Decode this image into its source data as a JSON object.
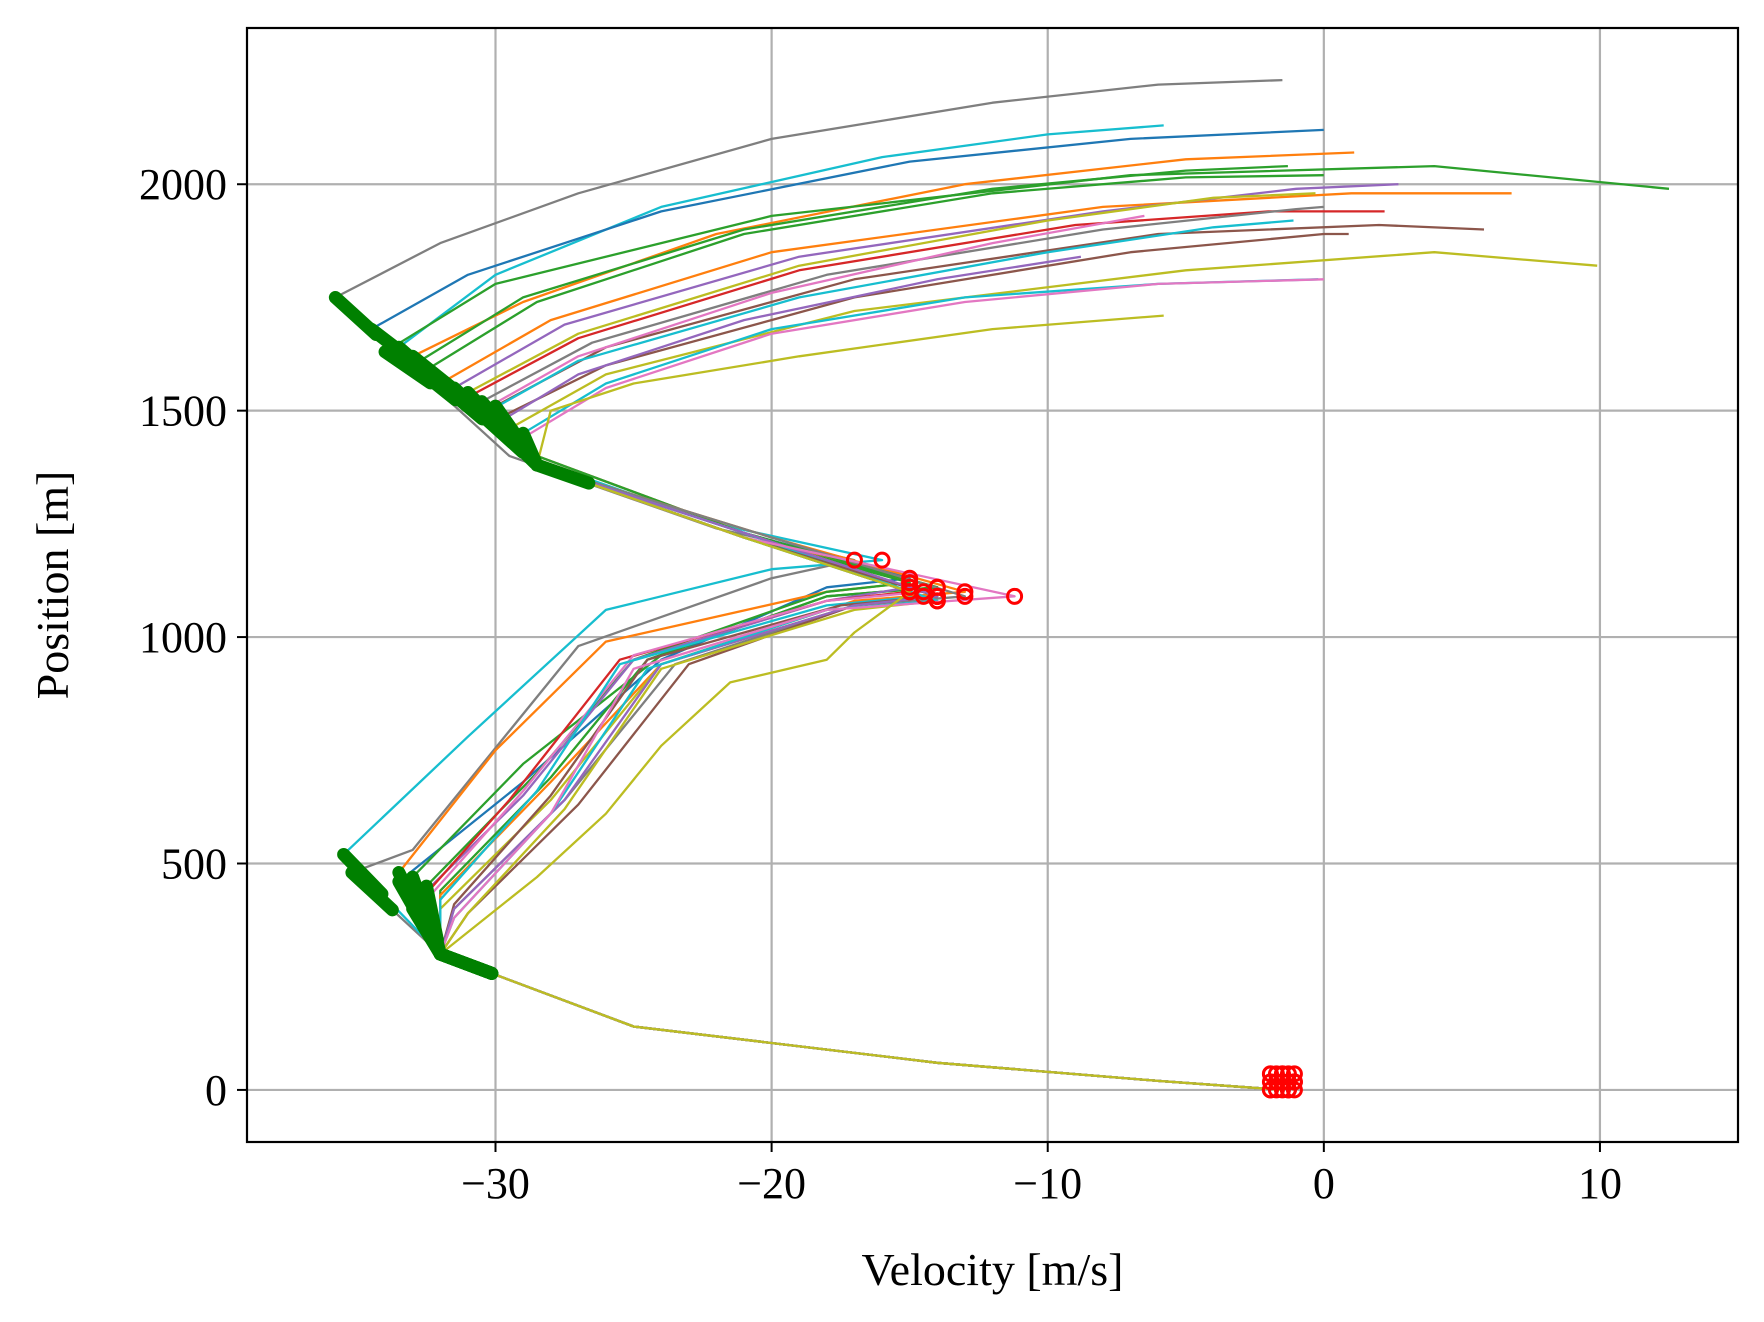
{
  "chart_data": {
    "type": "line",
    "title": "",
    "xlabel": "Velocity [m/s]",
    "ylabel": "Position [m]",
    "xlim": [
      -39,
      15
    ],
    "ylim": [
      -115,
      2345
    ],
    "xticks": [
      -30,
      -20,
      -10,
      0,
      10
    ],
    "xtick_labels": [
      "−30",
      "−20",
      "−10",
      "0",
      "10"
    ],
    "yticks": [
      0,
      500,
      1000,
      1500,
      2000
    ],
    "ytick_labels": [
      "0",
      "500",
      "1000",
      "1500",
      "2000"
    ],
    "grid": true,
    "legend": "none",
    "colors": {
      "palette": [
        "#1f77b4",
        "#ff7f0e",
        "#2ca02c",
        "#d62728",
        "#9467bd",
        "#8c564b",
        "#e377c2",
        "#7f7f7f",
        "#bcbd22",
        "#17becf"
      ],
      "thick_segment": "#008000",
      "open_marker": "#ff0000"
    },
    "series": [
      {
        "color": "#7f7f7f",
        "x": [
          -1.5,
          -6,
          -14,
          -25,
          -32,
          -35.2,
          -33,
          -27,
          -20,
          -17,
          -22,
          -29.5,
          -35.8,
          -32,
          -27,
          -20,
          -12,
          -6,
          -1.5
        ],
        "y": [
          0,
          20,
          60,
          140,
          300,
          480,
          530,
          980,
          1130,
          1170,
          1240,
          1400,
          1750,
          1870,
          1980,
          2100,
          2180,
          2220,
          2230
        ]
      },
      {
        "color": "#17becf",
        "x": [
          -1.5,
          -6,
          -14,
          -25,
          -32,
          -35.5,
          -31,
          -26,
          -20,
          -16,
          -22,
          -29,
          -33.5,
          -30,
          -24,
          -16,
          -10,
          -5.8
        ],
        "y": [
          0,
          20,
          60,
          140,
          300,
          520,
          780,
          1060,
          1150,
          1170,
          1250,
          1400,
          1640,
          1800,
          1950,
          2060,
          2110,
          2130
        ]
      },
      {
        "color": "#1f77b4",
        "x": [
          -1.5,
          -6,
          -14,
          -25,
          -32,
          -33.5,
          -29,
          -24,
          -18,
          -15,
          -21,
          -28.5,
          -34.5,
          -31,
          -24,
          -15,
          -7,
          0
        ],
        "y": [
          0,
          20,
          60,
          140,
          300,
          460,
          680,
          950,
          1110,
          1130,
          1230,
          1400,
          1680,
          1800,
          1940,
          2050,
          2100,
          2120
        ]
      },
      {
        "color": "#ff7f0e",
        "x": [
          -1.5,
          -6,
          -14,
          -25,
          -32,
          -33.5,
          -30,
          -26,
          -18,
          -15,
          -21,
          -28.5,
          -33,
          -29,
          -22,
          -13,
          -5,
          1.1
        ],
        "y": [
          0,
          20,
          60,
          140,
          300,
          480,
          750,
          990,
          1100,
          1120,
          1230,
          1400,
          1620,
          1740,
          1890,
          2000,
          2055,
          2070
        ]
      },
      {
        "color": "#2ca02c",
        "x": [
          -1.5,
          -6,
          -14,
          -25,
          -32,
          -33,
          -29,
          -24,
          -18,
          -14,
          -21,
          -28.5,
          -34,
          -30,
          -20,
          -7,
          4,
          12.5
        ],
        "y": [
          0,
          20,
          60,
          140,
          300,
          470,
          720,
          960,
          1090,
          1110,
          1230,
          1400,
          1630,
          1780,
          1930,
          2020,
          2040,
          1990
        ]
      },
      {
        "color": "#2ca02c",
        "x": [
          -1.5,
          -6,
          -14,
          -25,
          -32,
          -32.5,
          -28.5,
          -25,
          -18,
          -15,
          -21,
          -28.5,
          -33,
          -29,
          -21,
          -12,
          -5,
          -1.3
        ],
        "y": [
          0,
          20,
          60,
          140,
          300,
          450,
          700,
          950,
          1100,
          1120,
          1220,
          1380,
          1600,
          1750,
          1900,
          1990,
          2030,
          2040
        ]
      },
      {
        "color": "#2ca02c",
        "x": [
          -1.5,
          -6,
          -14,
          -25,
          -32,
          -32,
          -28,
          -24.5,
          -18,
          -14,
          -21,
          -28.5,
          -32.5,
          -28.5,
          -21,
          -12,
          -5,
          0
        ],
        "y": [
          0,
          20,
          60,
          140,
          300,
          440,
          690,
          950,
          1090,
          1110,
          1220,
          1380,
          1590,
          1740,
          1890,
          1980,
          2015,
          2020
        ]
      },
      {
        "color": "#ff7f0e",
        "x": [
          -1.5,
          -6,
          -14,
          -25,
          -32,
          -32,
          -28,
          -24,
          -17,
          -13,
          -20,
          -28.5,
          -32,
          -28,
          -20,
          -8,
          1,
          6.8
        ],
        "y": [
          0,
          20,
          60,
          140,
          300,
          430,
          680,
          940,
          1080,
          1100,
          1220,
          1380,
          1560,
          1700,
          1850,
          1950,
          1980,
          1980
        ]
      },
      {
        "color": "#9467bd",
        "x": [
          -1.5,
          -6,
          -14,
          -25,
          -32,
          -33,
          -29,
          -25,
          -18,
          -15,
          -21,
          -28.5,
          -31.5,
          -27.5,
          -19,
          -8,
          -1,
          2.7
        ],
        "y": [
          0,
          20,
          60,
          140,
          300,
          410,
          650,
          950,
          1080,
          1110,
          1230,
          1380,
          1550,
          1690,
          1840,
          1940,
          1990,
          2000
        ]
      },
      {
        "color": "#bcbd22",
        "x": [
          -1.5,
          -6,
          -14,
          -25,
          -32,
          -32,
          -28,
          -24,
          -17,
          -14,
          -21,
          -28.5,
          -31,
          -27,
          -19,
          -10,
          -4,
          -0.3
        ],
        "y": [
          0,
          20,
          60,
          140,
          300,
          400,
          640,
          940,
          1070,
          1090,
          1220,
          1380,
          1540,
          1670,
          1820,
          1920,
          1970,
          1980
        ]
      },
      {
        "color": "#d62728",
        "x": [
          -1.5,
          -6,
          -14,
          -25,
          -32,
          -33,
          -29.5,
          -25.5,
          -18,
          -15,
          -21,
          -28.5,
          -31,
          -27,
          -19,
          -9,
          -2,
          2.2
        ],
        "y": [
          0,
          20,
          60,
          140,
          300,
          400,
          640,
          950,
          1080,
          1100,
          1220,
          1380,
          1530,
          1660,
          1810,
          1910,
          1940,
          1940
        ]
      },
      {
        "color": "#7f7f7f",
        "x": [
          -1.5,
          -6,
          -14,
          -25,
          -32,
          -31.5,
          -27.5,
          -23.5,
          -17,
          -13,
          -20,
          -28.5,
          -30.5,
          -26.5,
          -18,
          -8,
          -1,
          0
        ],
        "y": [
          0,
          20,
          60,
          140,
          300,
          400,
          640,
          940,
          1070,
          1090,
          1220,
          1380,
          1520,
          1650,
          1800,
          1900,
          1945,
          1950
        ]
      },
      {
        "color": "#8c564b",
        "x": [
          -1.5,
          -6,
          -14,
          -25,
          -32,
          -31,
          -27,
          -23,
          -17,
          -14,
          -21,
          -28.5,
          -30,
          -26,
          -17,
          -6,
          2,
          5.8
        ],
        "y": [
          0,
          20,
          60,
          140,
          300,
          390,
          630,
          940,
          1070,
          1090,
          1220,
          1380,
          1510,
          1640,
          1790,
          1890,
          1910,
          1900
        ]
      },
      {
        "color": "#e377c2",
        "x": [
          -1.5,
          -6,
          -14,
          -25,
          -32,
          -32.5,
          -29,
          -25,
          -18,
          -14.5,
          -21,
          -28.5,
          -30.5,
          -27,
          -20,
          -12,
          -6.5
        ],
        "y": [
          0,
          20,
          60,
          140,
          300,
          420,
          660,
          960,
          1080,
          1100,
          1230,
          1380,
          1500,
          1620,
          1760,
          1870,
          1930
        ]
      },
      {
        "color": "#17becf",
        "x": [
          -1.5,
          -6,
          -14,
          -25,
          -32,
          -32,
          -28.5,
          -25.5,
          -18,
          -14.5,
          -21,
          -28.5,
          -30.5,
          -27,
          -19,
          -10,
          -4,
          -1.1
        ],
        "y": [
          0,
          20,
          60,
          140,
          300,
          420,
          660,
          940,
          1070,
          1090,
          1230,
          1380,
          1490,
          1610,
          1750,
          1850,
          1905,
          1920
        ]
      },
      {
        "color": "#8c564b",
        "x": [
          -1.5,
          -6,
          -14,
          -25,
          -32,
          -31.5,
          -28,
          -24.5,
          -17.5,
          -14,
          -21,
          -28.5,
          -30,
          -26,
          -17,
          -7,
          0,
          0.9
        ],
        "y": [
          0,
          20,
          60,
          140,
          300,
          410,
          650,
          950,
          1070,
          1090,
          1220,
          1380,
          1480,
          1600,
          1750,
          1850,
          1890,
          1890
        ]
      },
      {
        "color": "#9467bd",
        "x": [
          -1.5,
          -6,
          -14,
          -25,
          -32,
          -31.5,
          -27.5,
          -24,
          -17,
          -14,
          -21,
          -28.5,
          -30,
          -27,
          -21,
          -14,
          -8.8
        ],
        "y": [
          0,
          20,
          60,
          140,
          300,
          400,
          640,
          940,
          1070,
          1090,
          1230,
          1380,
          1470,
          1580,
          1700,
          1790,
          1840
        ]
      },
      {
        "color": "#bcbd22",
        "x": [
          -1.5,
          -6,
          -14,
          -25,
          -32,
          -31,
          -27.5,
          -24,
          -17,
          -14,
          -21,
          -28.5,
          -29.5,
          -26,
          -17,
          -5,
          4,
          9.9
        ],
        "y": [
          0,
          20,
          60,
          140,
          300,
          390,
          620,
          930,
          1060,
          1080,
          1220,
          1380,
          1460,
          1580,
          1720,
          1810,
          1850,
          1820
        ]
      },
      {
        "color": "#17becf",
        "x": [
          -1.5,
          -6,
          -14,
          -25,
          -32,
          -31.5,
          -28,
          -24.5,
          -18,
          -14,
          -21,
          -28.5,
          -29,
          -26,
          -20,
          -13,
          -6,
          -0.2
        ],
        "y": [
          0,
          20,
          60,
          140,
          300,
          380,
          610,
          930,
          1060,
          1080,
          1220,
          1380,
          1450,
          1560,
          1680,
          1750,
          1780,
          1790
        ]
      },
      {
        "color": "#e377c2",
        "x": [
          -1.5,
          -6,
          -14,
          -25,
          -32,
          -31.5,
          -28,
          -25,
          -18,
          -11.2,
          -21,
          -28.5,
          -29,
          -26,
          -20,
          -13,
          -6,
          0
        ],
        "y": [
          0,
          20,
          60,
          140,
          300,
          380,
          610,
          930,
          1060,
          1090,
          1220,
          1380,
          1440,
          1550,
          1670,
          1740,
          1780,
          1790
        ]
      },
      {
        "color": "#bcbd22",
        "x": [
          -1.5,
          -6,
          -14,
          -25,
          -32,
          -28.5,
          -26,
          -24,
          -21.5,
          -18,
          -17,
          -15,
          -21,
          -28.5,
          -28,
          -25,
          -19,
          -12,
          -5.8
        ],
        "y": [
          0,
          20,
          60,
          140,
          300,
          470,
          610,
          760,
          900,
          950,
          1010,
          1100,
          1220,
          1380,
          1500,
          1560,
          1620,
          1680,
          1710
        ]
      }
    ],
    "thick_segments_note": "",
    "open_markers_note": ""
  }
}
